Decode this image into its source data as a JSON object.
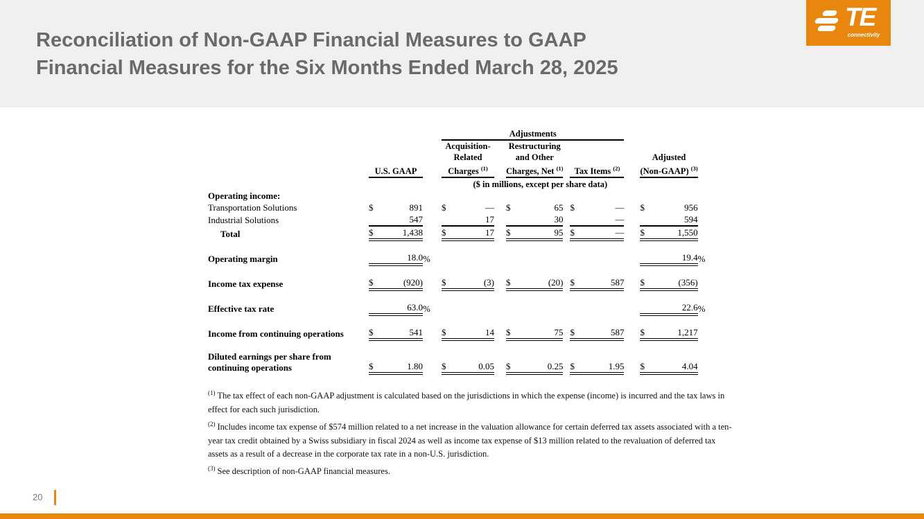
{
  "slide": {
    "title_line1": "Reconciliation of Non-GAAP Financial Measures to GAAP",
    "title_line2": "Financial Measures for the Six Months Ended March 28, 2025",
    "page_number": "20"
  },
  "logo": {
    "name": "TE",
    "tagline": "connectivity"
  },
  "colors": {
    "accent_orange": "#E8860D",
    "header_gray": "#F0F0F0",
    "title_gray": "#6A6A6A"
  },
  "table": {
    "group_header": "Adjustments",
    "units_note": "($ in millions, except per share data)",
    "columns": [
      {
        "lines": [
          "U.S. GAAP"
        ],
        "sup": ""
      },
      {
        "lines": [
          "Acquisition-",
          "Related",
          "Charges"
        ],
        "sup": "(1)"
      },
      {
        "lines": [
          "Restructuring",
          "and Other",
          "Charges, Net"
        ],
        "sup": "(1)"
      },
      {
        "lines": [
          "Tax Items"
        ],
        "sup": "(2)"
      },
      {
        "lines": [
          "Adjusted",
          "(Non-GAAP)"
        ],
        "sup": "(3)"
      }
    ],
    "rows": [
      {
        "label": "Operating income:",
        "bold": true,
        "cells": null
      },
      {
        "label": "Transportation Solutions",
        "cells": [
          [
            "$",
            "891"
          ],
          [
            "$",
            "—"
          ],
          [
            "$",
            "65"
          ],
          [
            "$",
            "—"
          ],
          [
            "$",
            "956"
          ]
        ]
      },
      {
        "label": "Industrial Solutions",
        "underline": "single",
        "cells": [
          [
            "",
            "547"
          ],
          [
            "",
            "17"
          ],
          [
            "",
            "30"
          ],
          [
            "",
            "—"
          ],
          [
            "",
            "594"
          ]
        ]
      },
      {
        "label": "Total",
        "bold": true,
        "indent": true,
        "underline": "double",
        "cells": [
          [
            "$",
            "1,438"
          ],
          [
            "$",
            "17"
          ],
          [
            "$",
            "95"
          ],
          [
            "$",
            "—"
          ],
          [
            "$",
            "1,550"
          ]
        ]
      },
      {
        "spacer": true
      },
      {
        "label": "Operating margin",
        "bold": true,
        "underline": "double",
        "suffix": "%",
        "cells": [
          [
            "",
            "18.0"
          ],
          null,
          null,
          null,
          [
            "",
            "19.4"
          ]
        ]
      },
      {
        "spacer": true
      },
      {
        "label": "Income tax expense",
        "bold": true,
        "underline": "double",
        "cells": [
          [
            "$",
            "(920)"
          ],
          [
            "$",
            "(3)"
          ],
          [
            "$",
            "(20)"
          ],
          [
            "$",
            "587"
          ],
          [
            "$",
            "(356)"
          ]
        ]
      },
      {
        "spacer": true
      },
      {
        "label": "Effective tax rate",
        "bold": true,
        "underline": "double",
        "suffix": "%",
        "cells": [
          [
            "",
            "63.0"
          ],
          null,
          null,
          null,
          [
            "",
            "22.6"
          ]
        ]
      },
      {
        "spacer": true
      },
      {
        "label": "Income from continuing operations",
        "bold": true,
        "underline": "double",
        "cells": [
          [
            "$",
            "541"
          ],
          [
            "$",
            "14"
          ],
          [
            "$",
            "75"
          ],
          [
            "$",
            "587"
          ],
          [
            "$",
            "1,217"
          ]
        ]
      },
      {
        "spacer": true
      },
      {
        "label_lines": [
          "Diluted earnings per share from",
          "continuing operations"
        ],
        "bold": true,
        "underline": "double",
        "cells": [
          [
            "$",
            "1.80"
          ],
          [
            "$",
            "0.05"
          ],
          [
            "$",
            "0.25"
          ],
          [
            "$",
            "1.95"
          ],
          [
            "$",
            "4.04"
          ]
        ]
      }
    ],
    "footnotes": [
      {
        "marker": "(1)",
        "text": "The tax effect of each non-GAAP adjustment is calculated based on the jurisdictions in which the expense (income) is incurred and the tax laws in effect for each such jurisdiction."
      },
      {
        "marker": "(2)",
        "text": "Includes income tax expense of $574 million related to a net increase in the valuation allowance for certain deferred tax assets associated with a ten-year tax credit obtained by a Swiss subsidiary in fiscal 2024 as well as income tax expense of $13 million related to the revaluation of deferred tax assets as a result of a decrease in the corporate tax rate in a non-U.S. jurisdiction."
      },
      {
        "marker": "(3)",
        "text": "See description of non-GAAP financial measures."
      }
    ]
  }
}
